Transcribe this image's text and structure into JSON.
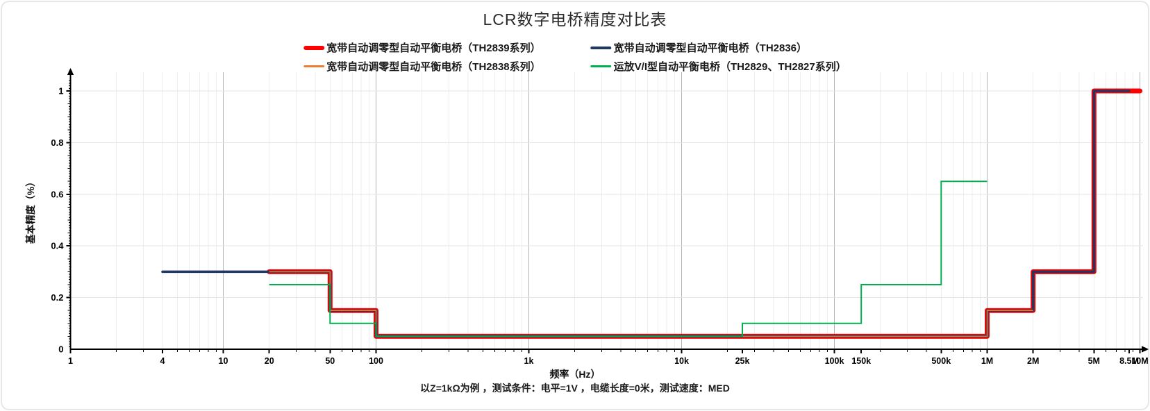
{
  "title": "LCR数字电桥精度对比表",
  "legend": {
    "items": [
      {
        "label": "宽带自动调零型自动平衡电桥（TH2839系列）",
        "color": "#fe0000",
        "swatch_height": 6
      },
      {
        "label": "宽带自动调零型自动平衡电桥（TH2836）",
        "color": "#1f3864",
        "swatch_height": 4
      },
      {
        "label": "宽带自动调零型自动平衡电桥（TH2838系列）",
        "color": "#ed7d31",
        "swatch_height": 2.5
      },
      {
        "label": "运放V/I型自动平衡电桥（TH2829、TH2827系列）",
        "color": "#00b050",
        "swatch_height": 2.5
      }
    ]
  },
  "footnote": "以Z=1kΩ为例 ，测试条件：电平=1V ，电缆长度=0米，测试速度：MED",
  "chart_data": {
    "type": "line",
    "subtype": "step",
    "title": "LCR数字电桥精度对比表",
    "xlabel": "频率（Hz）",
    "ylabel": "基本精度（%）",
    "x_scale": "log",
    "xlim": [
      1,
      10000000
    ],
    "ylim": [
      0,
      1.05
    ],
    "grid": true,
    "legend_position": "top-center",
    "x_ticks": [
      {
        "label": "1",
        "value": 1
      },
      {
        "label": "4",
        "value": 4
      },
      {
        "label": "10",
        "value": 10
      },
      {
        "label": "20",
        "value": 20
      },
      {
        "label": "50",
        "value": 50
      },
      {
        "label": "100",
        "value": 100
      },
      {
        "label": "1k",
        "value": 1000
      },
      {
        "label": "10k",
        "value": 10000
      },
      {
        "label": "25k",
        "value": 25000
      },
      {
        "label": "100k",
        "value": 100000
      },
      {
        "label": "150k",
        "value": 150000
      },
      {
        "label": "500k",
        "value": 500000
      },
      {
        "label": "1M",
        "value": 1000000
      },
      {
        "label": "2M",
        "value": 2000000
      },
      {
        "label": "5M",
        "value": 5000000
      },
      {
        "label": "8.5M",
        "value": 8500000
      },
      {
        "label": "10M",
        "value": 10000000
      }
    ],
    "y_ticks": [
      {
        "label": "0",
        "value": 0
      },
      {
        "label": "0.2",
        "value": 0.2
      },
      {
        "label": "0.4",
        "value": 0.4
      },
      {
        "label": "0.6",
        "value": 0.6
      },
      {
        "label": "0.8",
        "value": 0.8
      },
      {
        "label": "1",
        "value": 1
      }
    ],
    "series": [
      {
        "name": "宽带自动调零型自动平衡电桥（TH2839系列）",
        "color": "#fe0000",
        "width": 7,
        "cap": "round",
        "points": [
          [
            20,
            0.3
          ],
          [
            50,
            0.3
          ],
          [
            50,
            0.15
          ],
          [
            100,
            0.15
          ],
          [
            100,
            0.05
          ],
          [
            1000000,
            0.05
          ],
          [
            1000000,
            0.15
          ],
          [
            2000000,
            0.15
          ],
          [
            2000000,
            0.3
          ],
          [
            5000000,
            0.3
          ],
          [
            5000000,
            1
          ],
          [
            10000000,
            1
          ]
        ]
      },
      {
        "name": "宽带自动调零型自动平衡电桥（TH2836）",
        "color": "#1f3864",
        "width": 3.5,
        "cap": "round",
        "points": [
          [
            4,
            0.3
          ],
          [
            50,
            0.3
          ],
          [
            50,
            0.15
          ],
          [
            100,
            0.15
          ],
          [
            100,
            0.05
          ],
          [
            1000000,
            0.05
          ],
          [
            1000000,
            0.15
          ],
          [
            2000000,
            0.15
          ],
          [
            2000000,
            0.3
          ],
          [
            5000000,
            0.3
          ],
          [
            5000000,
            1
          ],
          [
            8500000,
            1
          ]
        ]
      },
      {
        "name": "宽带自动调零型自动平衡电桥（TH2838系列）",
        "color": "#ed7d31",
        "width": 1.6,
        "cap": "butt",
        "points": [
          [
            20,
            0.3
          ],
          [
            50,
            0.3
          ],
          [
            50,
            0.15
          ],
          [
            100,
            0.15
          ],
          [
            100,
            0.05
          ],
          [
            1000000,
            0.05
          ],
          [
            1000000,
            0.15
          ],
          [
            2000000,
            0.15
          ]
        ]
      },
      {
        "name": "运放V/I型自动平衡电桥（TH2829、TH2827系列）",
        "color": "#00b050",
        "width": 2,
        "cap": "butt",
        "points": [
          [
            20,
            0.25
          ],
          [
            50,
            0.25
          ],
          [
            50,
            0.1
          ],
          [
            100,
            0.1
          ],
          [
            100,
            0.05
          ],
          [
            25000,
            0.05
          ],
          [
            25000,
            0.1
          ],
          [
            150000,
            0.1
          ],
          [
            150000,
            0.25
          ],
          [
            500000,
            0.25
          ],
          [
            500000,
            0.65
          ],
          [
            1000000,
            0.65
          ]
        ]
      }
    ],
    "annotation": "以Z=1kΩ为例 ，测试条件：电平=1V ，电缆长度=0米，测试速度：MED"
  }
}
